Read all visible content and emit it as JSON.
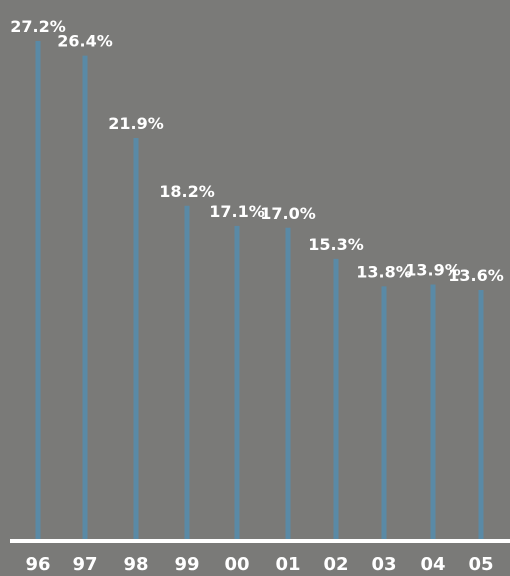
{
  "chart_data": {
    "type": "bar",
    "categories": [
      "96",
      "97",
      "98",
      "99",
      "00",
      "01",
      "02",
      "03",
      "04",
      "05"
    ],
    "values": [
      27.2,
      26.4,
      21.9,
      18.2,
      17.1,
      17.0,
      15.3,
      13.8,
      13.9,
      13.6
    ],
    "value_labels": [
      "27.2%",
      "26.4%",
      "21.9%",
      "18.2%",
      "17.1%",
      "17.0%",
      "15.3%",
      "13.8%",
      "13.9%",
      "13.6%"
    ],
    "title": "",
    "xlabel": "",
    "ylabel": "",
    "ylim": [
      0,
      30
    ],
    "grid": false,
    "legend": "none",
    "colors": {
      "background": "#7a7a78",
      "bar": "#5a8aa6",
      "text": "#ffffff",
      "baseline": "#ffffff"
    }
  }
}
